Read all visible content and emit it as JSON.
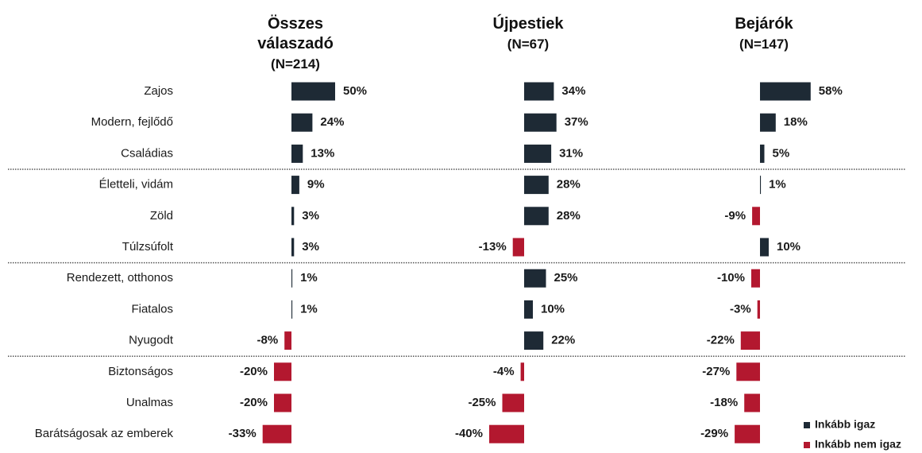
{
  "chart_data": {
    "type": "bar",
    "categories": [
      "Zajos",
      "Modern, fejlődő",
      "Családias",
      "Életteli, vidám",
      "Zöld",
      "Túlzsúfolt",
      "Rendezett, otthonos",
      "Fiatalos",
      "Nyugodt",
      "Biztonságos",
      "Unalmas",
      "Barátságosak az emberek"
    ],
    "panels": [
      {
        "title": "Összes válaszadó",
        "subtitle": "(N=214)",
        "values": [
          50,
          24,
          13,
          9,
          3,
          3,
          1,
          1,
          -8,
          -20,
          -20,
          -33
        ],
        "value_labels": [
          "50%",
          "24%",
          "13%",
          "9%",
          "3%",
          "3%",
          "1%",
          "1%",
          "-8%",
          "-20%",
          "-20%",
          "-33%"
        ]
      },
      {
        "title": "Újpestiek",
        "subtitle": "(N=67)",
        "values": [
          34,
          37,
          31,
          28,
          28,
          -13,
          25,
          10,
          22,
          -4,
          -25,
          -40
        ],
        "value_labels": [
          "34%",
          "37%",
          "31%",
          "28%",
          "28%",
          "-13%",
          "25%",
          "10%",
          "22%",
          "-4%",
          "-25%",
          "-40%"
        ]
      },
      {
        "title": "Bejárók",
        "subtitle": "(N=147)",
        "values": [
          58,
          18,
          5,
          1,
          -9,
          10,
          -10,
          -3,
          -22,
          -27,
          -18,
          -29
        ],
        "value_labels": [
          "58%",
          "18%",
          "5%",
          "1%",
          "-9%",
          "10%",
          "-10%",
          "-3%",
          "-22%",
          "-27%",
          "-18%",
          "-29%"
        ]
      }
    ],
    "legend": [
      {
        "name": "Inkább igaz",
        "color": "#1e2a35"
      },
      {
        "name": "Inkább nem igaz",
        "color": "#b3182f"
      }
    ]
  }
}
